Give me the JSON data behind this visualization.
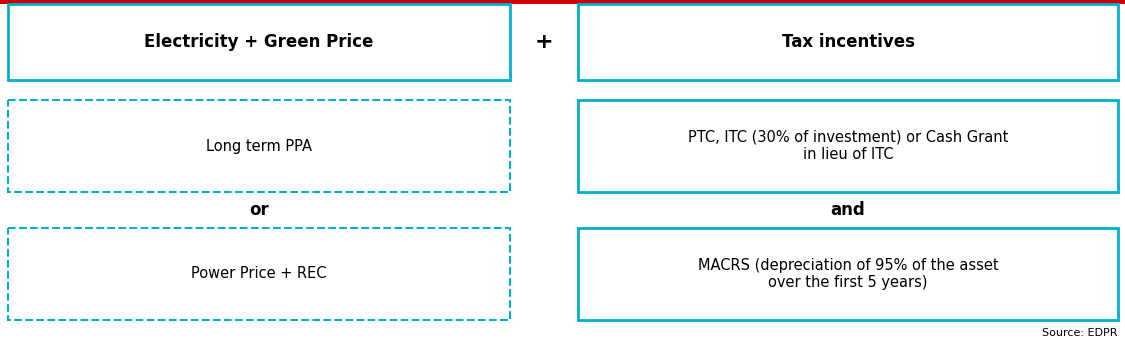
{
  "top_bar_color": "#cc0000",
  "solid_box_border_color": "#00b0d0",
  "dashed_box_border_color": "#00b0d0",
  "background_color": "#ffffff",
  "text_color": "#000000",
  "source_text": "Source: EDPR",
  "left_col_header": "Electricity + Green Price",
  "right_col_header": "Tax incentives",
  "plus_sign": "+",
  "left_boxes": [
    {
      "text": "Long term PPA"
    },
    {
      "text": "Power Price + REC"
    }
  ],
  "left_connectors": [
    "or"
  ],
  "right_boxes": [
    {
      "text": "PTC, ITC (30% of investment) or Cash Grant\nin lieu of ITC"
    },
    {
      "text": "MACRS (depreciation of 95% of the asset\nover the first 5 years)"
    }
  ],
  "right_connectors": [
    "and"
  ],
  "header_fontsize": 12,
  "body_fontsize": 10.5,
  "connector_fontsize": 12,
  "source_fontsize": 8,
  "fig_width": 11.25,
  "fig_height": 3.44,
  "dpi": 100
}
